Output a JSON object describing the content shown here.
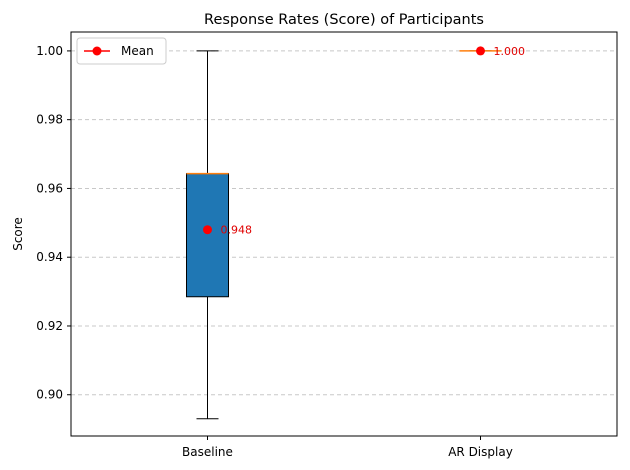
{
  "chart_data": {
    "type": "box",
    "title": "Response Rates (Score) of Participants",
    "xlabel": "",
    "ylabel": "Score",
    "ylim": [
      0.888,
      1.0055
    ],
    "yticks": [
      0.9,
      0.92,
      0.94,
      0.96,
      0.98,
      1.0
    ],
    "ytick_labels": [
      "0.90",
      "0.92",
      "0.94",
      "0.96",
      "0.98",
      "1.00"
    ],
    "grid": "y-dashed",
    "legend": {
      "placement": "top-left",
      "entries": [
        "Mean"
      ]
    },
    "categories": [
      "Baseline",
      "AR Display"
    ],
    "boxes": [
      {
        "category": "Baseline",
        "whisker_low": 0.893,
        "q1": 0.9285,
        "median": 0.9643,
        "q3": 0.9643,
        "whisker_high": 1.0,
        "mean": 0.948,
        "mean_label": "0.948"
      },
      {
        "category": "AR Display",
        "whisker_low": 1.0,
        "q1": 1.0,
        "median": 1.0,
        "q3": 1.0,
        "whisker_high": 1.0,
        "mean": 1.0,
        "mean_label": "1.000"
      }
    ],
    "colors": {
      "box_fill": "#1f77b4",
      "median": "#ff7f0e",
      "mean": "#ff0000",
      "mean_label": "#e00000",
      "grid": "#c8c8c8"
    }
  }
}
